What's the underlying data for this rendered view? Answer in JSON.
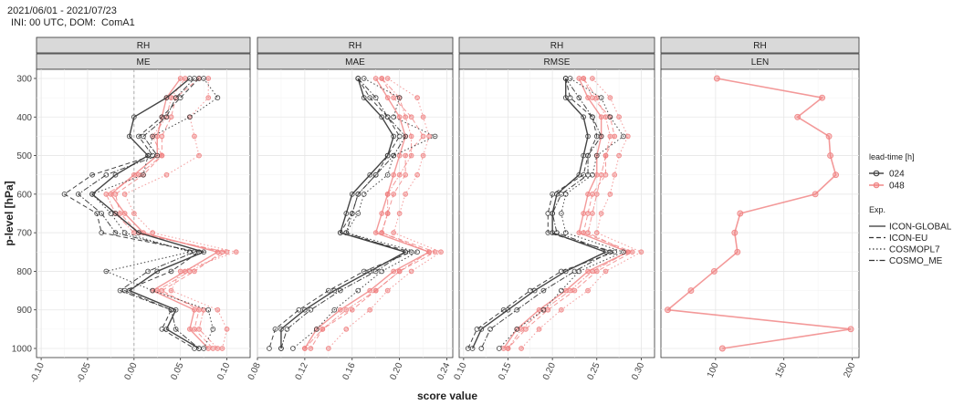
{
  "header": {
    "date_range": "2021/06/01 - 2021/07/23",
    "init_info": "INI: 00 UTC, DOM:  ComA1"
  },
  "chart_data": {
    "type": "line",
    "xlabel": "score value",
    "ylabel": "p-level [hPa]",
    "ylim": [
      1000,
      300
    ],
    "yticks": [
      300,
      400,
      500,
      600,
      700,
      800,
      900,
      1000
    ],
    "levels": [
      300,
      350,
      400,
      450,
      500,
      550,
      600,
      650,
      700,
      750,
      800,
      850,
      900,
      950,
      1000
    ],
    "grid": true,
    "legend_position": "right",
    "legend": {
      "leadtime_title": "lead-time [h]",
      "leadtimes": [
        {
          "label": "024",
          "color": "#3a3a3a"
        },
        {
          "label": "048",
          "color": "#f08080"
        }
      ],
      "exp_title": "Exp.",
      "experiments": [
        {
          "label": "ICON-GLOBAL",
          "dash": "solid"
        },
        {
          "label": "ICON-EU",
          "dash": "dashed"
        },
        {
          "label": "COSMOPL7",
          "dash": "dotted"
        },
        {
          "label": "COSMO_ME",
          "dash": "dotdash"
        }
      ]
    },
    "panels": [
      {
        "strip_top": "RH",
        "strip_bottom": "ME",
        "xlim": [
          -0.105,
          0.125
        ],
        "xticks": [
          -0.1,
          -0.05,
          0.0,
          0.05,
          0.1
        ],
        "xtick_labels": [
          "-0.10",
          "-0.05",
          "0.00",
          "0.05",
          "0.10"
        ],
        "zero_line": true,
        "series": [
          {
            "leadtime": "024",
            "exp": "ICON-GLOBAL",
            "values": [
              0.06,
              0.035,
              0.0,
              -0.005,
              0.015,
              -0.02,
              -0.045,
              -0.02,
              0.005,
              0.075,
              0.025,
              -0.005,
              0.045,
              0.035,
              0.07
            ]
          },
          {
            "leadtime": "024",
            "exp": "ICON-EU",
            "values": [
              0.07,
              0.05,
              0.03,
              0.005,
              0.02,
              -0.045,
              -0.075,
              -0.04,
              -0.035,
              0.07,
              0.04,
              -0.01,
              0.04,
              0.03,
              0.065
            ]
          },
          {
            "leadtime": "024",
            "exp": "COSMOPL7",
            "values": [
              0.075,
              0.09,
              0.06,
              0.02,
              0.015,
              0.01,
              -0.045,
              -0.025,
              -0.01,
              0.06,
              -0.03,
              0.02,
              0.08,
              0.085,
              0.075
            ]
          },
          {
            "leadtime": "024",
            "exp": "COSMO_ME",
            "values": [
              0.065,
              0.045,
              0.035,
              0.01,
              0.025,
              -0.03,
              -0.06,
              -0.035,
              -0.02,
              0.065,
              0.015,
              -0.015,
              0.04,
              0.045,
              0.07
            ]
          },
          {
            "leadtime": "048",
            "exp": "ICON-GLOBAL",
            "values": [
              0.05,
              0.035,
              0.03,
              0.025,
              0.025,
              0.0,
              -0.025,
              -0.01,
              0.01,
              0.09,
              0.055,
              0.02,
              0.065,
              0.06,
              0.08
            ]
          },
          {
            "leadtime": "048",
            "exp": "ICON-EU",
            "values": [
              0.07,
              0.045,
              0.04,
              0.03,
              0.03,
              0.01,
              -0.02,
              -0.015,
              0.005,
              0.095,
              0.065,
              0.03,
              0.07,
              0.065,
              0.085
            ]
          },
          {
            "leadtime": "048",
            "exp": "COSMOPL7",
            "values": [
              0.08,
              0.08,
              0.06,
              0.065,
              0.07,
              0.035,
              -0.01,
              0.0,
              0.02,
              0.11,
              0.05,
              0.04,
              0.09,
              0.1,
              0.095
            ]
          },
          {
            "leadtime": "048",
            "exp": "COSMO_ME",
            "values": [
              0.055,
              0.04,
              0.035,
              0.02,
              0.03,
              0.005,
              -0.03,
              -0.02,
              0.0,
              0.1,
              0.06,
              0.025,
              0.075,
              0.07,
              0.09
            ]
          }
        ]
      },
      {
        "strip_top": "RH",
        "strip_bottom": "MAE",
        "xlim": [
          0.08,
          0.245
        ],
        "xticks": [
          0.08,
          0.12,
          0.16,
          0.2,
          0.24
        ],
        "xtick_labels": [
          "0.08",
          "0.12",
          "0.16",
          "0.20",
          "0.24"
        ],
        "zero_line": false,
        "series": [
          {
            "leadtime": "024",
            "exp": "ICON-GLOBAL",
            "values": [
              0.165,
              0.17,
              0.185,
              0.195,
              0.19,
              0.175,
              0.16,
              0.155,
              0.15,
              0.205,
              0.175,
              0.145,
              0.12,
              0.1,
              0.1
            ]
          },
          {
            "leadtime": "024",
            "exp": "ICON-EU",
            "values": [
              0.165,
              0.175,
              0.19,
              0.2,
              0.19,
              0.18,
              0.165,
              0.16,
              0.15,
              0.21,
              0.17,
              0.14,
              0.115,
              0.095,
              0.09
            ]
          },
          {
            "leadtime": "024",
            "exp": "COSMOPL7",
            "values": [
              0.17,
              0.2,
              0.195,
              0.23,
              0.195,
              0.19,
              0.17,
              0.165,
              0.155,
              0.215,
              0.185,
              0.165,
              0.145,
              0.13,
              0.11
            ]
          },
          {
            "leadtime": "024",
            "exp": "COSMO_ME",
            "values": [
              0.165,
              0.18,
              0.19,
              0.205,
              0.195,
              0.18,
              0.165,
              0.16,
              0.155,
              0.205,
              0.18,
              0.15,
              0.125,
              0.105,
              0.1
            ]
          },
          {
            "leadtime": "048",
            "exp": "ICON-GLOBAL",
            "values": [
              0.18,
              0.19,
              0.2,
              0.205,
              0.2,
              0.195,
              0.19,
              0.185,
              0.18,
              0.225,
              0.195,
              0.175,
              0.15,
              0.13,
              0.12
            ]
          },
          {
            "leadtime": "048",
            "exp": "ICON-EU",
            "values": [
              0.185,
              0.195,
              0.21,
              0.22,
              0.205,
              0.205,
              0.195,
              0.19,
              0.185,
              0.23,
              0.2,
              0.18,
              0.16,
              0.135,
              0.125
            ]
          },
          {
            "leadtime": "048",
            "exp": "COSMOPL7",
            "values": [
              0.19,
              0.215,
              0.22,
              0.225,
              0.22,
              0.215,
              0.205,
              0.2,
              0.195,
              0.235,
              0.21,
              0.19,
              0.175,
              0.155,
              0.14
            ]
          },
          {
            "leadtime": "048",
            "exp": "COSMO_ME",
            "values": [
              0.185,
              0.2,
              0.205,
              0.21,
              0.21,
              0.2,
              0.19,
              0.19,
              0.185,
              0.225,
              0.2,
              0.18,
              0.155,
              0.135,
              0.12
            ]
          }
        ]
      },
      {
        "strip_top": "RH",
        "strip_bottom": "RMSE",
        "xlim": [
          0.095,
          0.315
        ],
        "xticks": [
          0.1,
          0.15,
          0.2,
          0.25,
          0.3
        ],
        "xtick_labels": [
          "0.10",
          "0.15",
          "0.20",
          "0.25",
          "0.30"
        ],
        "zero_line": false,
        "series": [
          {
            "leadtime": "024",
            "exp": "ICON-GLOBAL",
            "values": [
              0.215,
              0.215,
              0.235,
              0.24,
              0.235,
              0.23,
              0.205,
              0.2,
              0.2,
              0.26,
              0.215,
              0.18,
              0.15,
              0.12,
              0.11
            ]
          },
          {
            "leadtime": "024",
            "exp": "ICON-EU",
            "values": [
              0.215,
              0.22,
              0.245,
              0.25,
              0.24,
              0.235,
              0.2,
              0.195,
              0.195,
              0.27,
              0.21,
              0.175,
              0.145,
              0.115,
              0.105
            ]
          },
          {
            "leadtime": "024",
            "exp": "COSMOPL7",
            "values": [
              0.22,
              0.255,
              0.265,
              0.28,
              0.25,
              0.245,
              0.215,
              0.21,
              0.215,
              0.28,
              0.23,
              0.21,
              0.19,
              0.16,
              0.14
            ]
          },
          {
            "leadtime": "024",
            "exp": "COSMO_ME",
            "values": [
              0.215,
              0.23,
              0.245,
              0.255,
              0.24,
              0.24,
              0.21,
              0.2,
              0.205,
              0.265,
              0.225,
              0.19,
              0.16,
              0.13,
              0.12
            ]
          },
          {
            "leadtime": "048",
            "exp": "ICON-GLOBAL",
            "values": [
              0.23,
              0.24,
              0.255,
              0.255,
              0.25,
              0.25,
              0.24,
              0.235,
              0.23,
              0.285,
              0.24,
              0.215,
              0.185,
              0.16,
              0.145
            ]
          },
          {
            "leadtime": "048",
            "exp": "ICON-EU",
            "values": [
              0.235,
              0.245,
              0.265,
              0.27,
              0.26,
              0.26,
              0.245,
              0.24,
              0.235,
              0.29,
              0.25,
              0.225,
              0.195,
              0.17,
              0.15
            ]
          },
          {
            "leadtime": "048",
            "exp": "COSMOPL7",
            "values": [
              0.245,
              0.265,
              0.275,
              0.285,
              0.275,
              0.27,
              0.265,
              0.255,
              0.25,
              0.3,
              0.26,
              0.24,
              0.21,
              0.185,
              0.165
            ]
          },
          {
            "leadtime": "048",
            "exp": "COSMO_ME",
            "values": [
              0.235,
              0.25,
              0.26,
              0.265,
              0.26,
              0.255,
              0.25,
              0.245,
              0.24,
              0.285,
              0.245,
              0.22,
              0.19,
              0.165,
              0.15
            ]
          }
        ]
      },
      {
        "strip_top": "RH",
        "strip_bottom": "LEN",
        "xlim": [
          60,
          205
        ],
        "xticks": [
          100,
          150,
          200
        ],
        "xtick_labels": [
          "100",
          "150",
          "200"
        ],
        "zero_line": false,
        "series": [
          {
            "leadtime": "048",
            "exp": "ICON-GLOBAL",
            "values": [
              101,
              178,
              160,
              183,
              184,
              188,
              173,
              118,
              114,
              116,
              99,
              82,
              65,
              199,
              105
            ]
          }
        ]
      }
    ]
  }
}
